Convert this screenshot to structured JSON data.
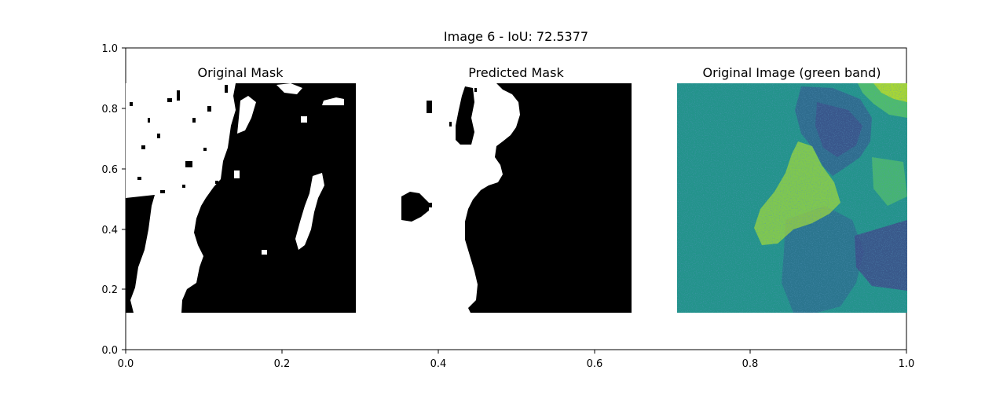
{
  "chart_data": {
    "type": "heatmap",
    "title": "Image 6 - IoU: 72.5377",
    "xlim": [
      0,
      1
    ],
    "ylim": [
      0,
      1
    ],
    "x_ticks": [
      "0.0",
      "0.2",
      "0.4",
      "0.6",
      "0.8",
      "1.0"
    ],
    "y_ticks": [
      "0.0",
      "0.2",
      "0.4",
      "0.6",
      "0.8",
      "1.0"
    ],
    "grid": false,
    "panels": [
      {
        "title": "Original Mask",
        "kind": "binary-mask",
        "x_range": [
          0.0,
          0.295
        ],
        "y_range": [
          0.12,
          0.88
        ]
      },
      {
        "title": "Predicted Mask",
        "kind": "binary-mask",
        "x_range": [
          0.353,
          0.648
        ],
        "y_range": [
          0.12,
          0.88
        ]
      },
      {
        "title": "Original Image (green band)",
        "kind": "raster-viridis",
        "x_range": [
          0.706,
          1.0
        ],
        "y_range": [
          0.12,
          0.88
        ]
      }
    ],
    "iou": 72.5377
  }
}
